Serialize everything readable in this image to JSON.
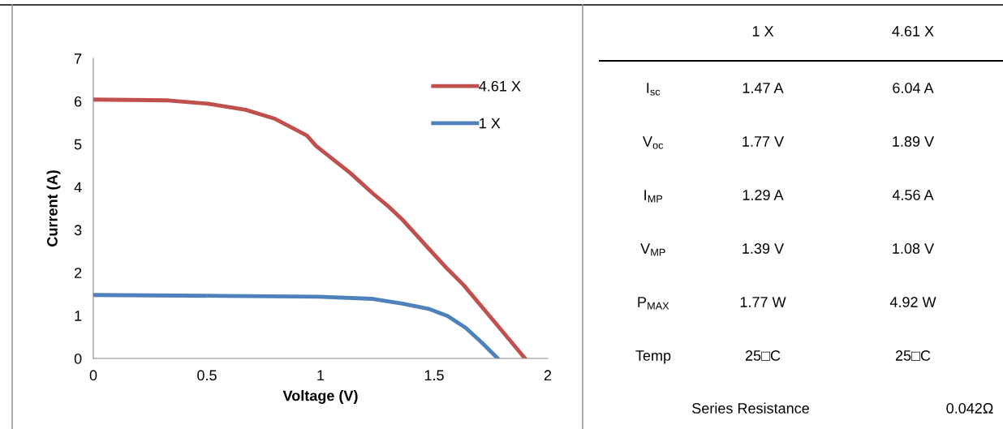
{
  "chart_data": [
    {
      "type": "line",
      "xlabel": "Voltage (V)",
      "ylabel": "Current (A)",
      "xlim": [
        0,
        2
      ],
      "xticks": [
        0,
        0.5,
        1,
        1.5,
        2
      ],
      "ylim": [
        0,
        7
      ],
      "yticks": [
        0,
        1,
        2,
        3,
        4,
        5,
        6,
        7
      ],
      "grid": false,
      "legend": "top right",
      "marker": "none",
      "line_style": "solid",
      "series": [
        {
          "name": "4.61 X",
          "color": "#c0504d",
          "x": [
            0,
            0.33,
            0.51,
            0.67,
            0.8,
            0.94,
            0.98,
            1.13,
            1.23,
            1.3,
            1.36,
            1.48,
            1.56,
            1.63,
            1.76,
            1.9
          ],
          "values": [
            6.04,
            6.02,
            5.94,
            5.8,
            5.59,
            5.2,
            4.96,
            4.33,
            3.85,
            3.54,
            3.24,
            2.54,
            2.08,
            1.71,
            0.89,
            0
          ]
        },
        {
          "name": "1 X",
          "color": "#4f81bd",
          "x": [
            0,
            0.57,
            0.99,
            1.23,
            1.36,
            1.48,
            1.56,
            1.64,
            1.71,
            1.78
          ],
          "values": [
            1.48,
            1.46,
            1.44,
            1.39,
            1.28,
            1.15,
            0.99,
            0.71,
            0.37,
            0
          ]
        }
      ]
    },
    {
      "type": "other",
      "categories": [
        "1 X",
        "4.61 X"
      ],
      "y_categories": [
        "I$_{sc}$",
        "V$_{oc}$",
        "I$_{MP}$",
        "V$_{MP}$",
        "P$_{MAX}$",
        "Temp"
      ],
      "cell_labels": [
        [
          "1.47 A",
          "6.04 A"
        ],
        [
          "1.77 V",
          "1.89 V"
        ],
        [
          "1.29 A",
          "4.56 A"
        ],
        [
          "1.39 V",
          "1.08 V"
        ],
        [
          "1.77 W",
          "4.92 W"
        ],
        [
          "25□C",
          "25□C"
        ]
      ],
      "annotations": [
        "Series Resistance",
        "0.042Ω"
      ]
    }
  ]
}
